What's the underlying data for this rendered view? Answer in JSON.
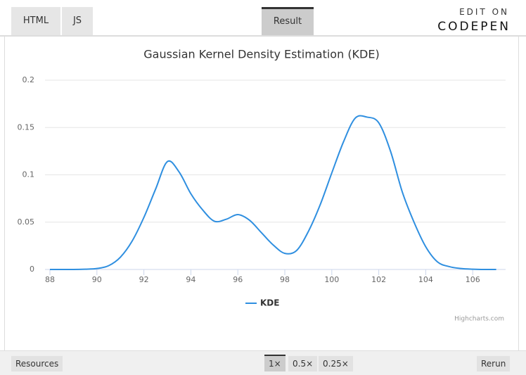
{
  "ui": {
    "tabs": [
      "HTML",
      "JS",
      "Result"
    ],
    "edit_on": "EDIT ON",
    "brand": "CODEPEN",
    "footer": {
      "resources": "Resources",
      "zoom": [
        "1×",
        "0.5×",
        "0.25×"
      ],
      "rerun": "Rerun"
    }
  },
  "chart_data": {
    "type": "line",
    "title": "Gaussian Kernel Density Estimation (KDE)",
    "x": [
      88,
      89,
      89.5,
      90,
      90.5,
      91,
      91.5,
      92,
      92.5,
      93,
      93.5,
      94,
      94.5,
      95,
      95.5,
      96,
      96.5,
      97,
      97.5,
      98,
      98.5,
      99,
      99.5,
      100,
      100.5,
      101,
      101.5,
      102,
      102.5,
      103,
      103.5,
      104,
      104.5,
      105,
      105.5,
      106,
      106.5,
      107
    ],
    "series": [
      {
        "name": "KDE",
        "color": "#2f8fe0",
        "values": [
          0,
          0,
          0.0003,
          0.001,
          0.004,
          0.013,
          0.03,
          0.055,
          0.085,
          0.114,
          0.103,
          0.08,
          0.063,
          0.051,
          0.053,
          0.058,
          0.052,
          0.039,
          0.026,
          0.017,
          0.02,
          0.04,
          0.068,
          0.102,
          0.135,
          0.16,
          0.161,
          0.155,
          0.125,
          0.082,
          0.05,
          0.024,
          0.008,
          0.003,
          0.001,
          0.0003,
          0,
          0
        ]
      }
    ],
    "xlim": [
      88,
      107.4
    ],
    "xticks": [
      88,
      90,
      92,
      94,
      96,
      98,
      100,
      102,
      104,
      106
    ],
    "ylim": [
      0,
      0.2
    ],
    "yticks": [
      0,
      0.05,
      0.1,
      0.15,
      0.2
    ],
    "grid": true,
    "credits": "Highcharts.com"
  }
}
